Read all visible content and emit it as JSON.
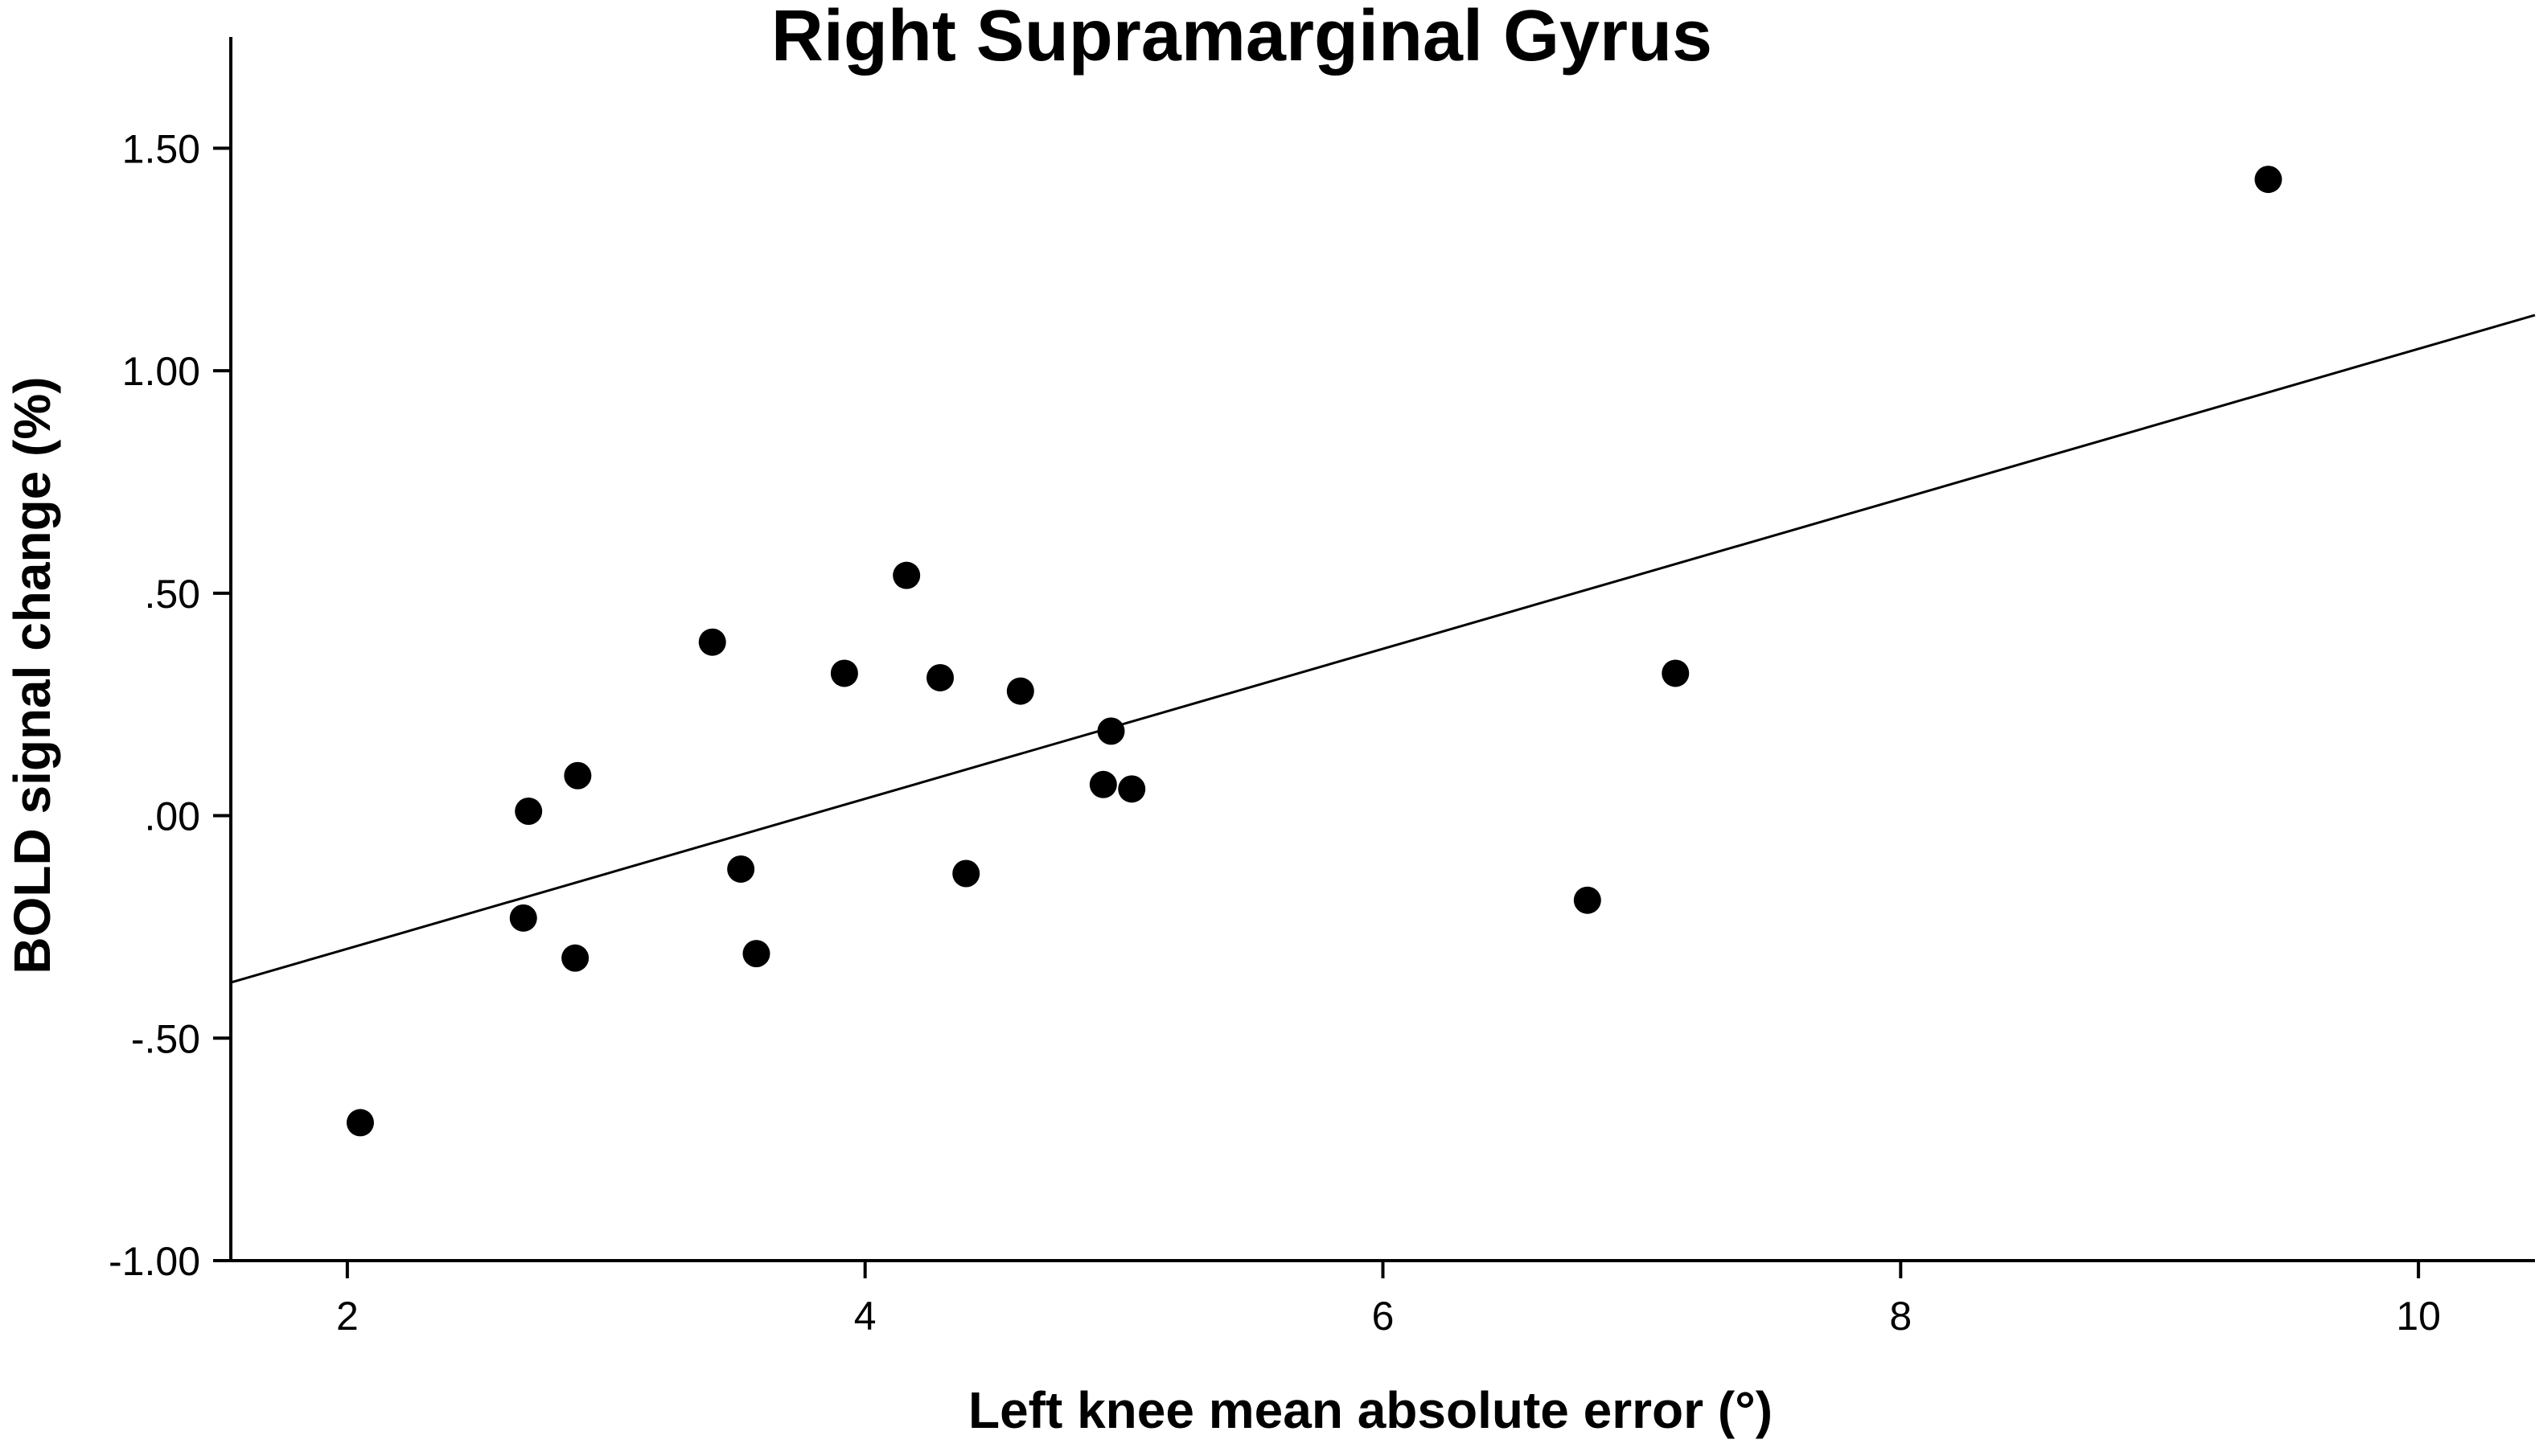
{
  "chart_data": {
    "type": "scatter",
    "title": "Right Supramarginal Gyrus",
    "xlabel": "Left knee mean absolute error (°)",
    "ylabel": "BOLD signal change (%)",
    "xlim": [
      1.55,
      10.45
    ],
    "ylim": [
      -1.0,
      1.75
    ],
    "x_ticks": [
      {
        "value": 2,
        "label": "2"
      },
      {
        "value": 4,
        "label": "4"
      },
      {
        "value": 6,
        "label": "6"
      },
      {
        "value": 8,
        "label": "8"
      },
      {
        "value": 10,
        "label": "10"
      }
    ],
    "y_ticks": [
      {
        "value": -1.0,
        "label": "-1.00"
      },
      {
        "value": -0.5,
        "label": "-.50"
      },
      {
        "value": 0.0,
        "label": ".00"
      },
      {
        "value": 0.5,
        "label": ".50"
      },
      {
        "value": 1.0,
        "label": "1.00"
      },
      {
        "value": 1.5,
        "label": "1.50"
      }
    ],
    "grid": false,
    "legend": "none",
    "points": [
      {
        "x": 2.05,
        "y": -0.69
      },
      {
        "x": 2.68,
        "y": -0.23
      },
      {
        "x": 2.7,
        "y": 0.01
      },
      {
        "x": 2.88,
        "y": -0.32
      },
      {
        "x": 2.89,
        "y": 0.09
      },
      {
        "x": 3.41,
        "y": 0.39
      },
      {
        "x": 3.52,
        "y": -0.12
      },
      {
        "x": 3.58,
        "y": -0.31
      },
      {
        "x": 3.92,
        "y": 0.32
      },
      {
        "x": 4.16,
        "y": 0.54
      },
      {
        "x": 4.29,
        "y": 0.31
      },
      {
        "x": 4.39,
        "y": -0.13
      },
      {
        "x": 4.6,
        "y": 0.28
      },
      {
        "x": 4.92,
        "y": 0.07
      },
      {
        "x": 4.95,
        "y": 0.19
      },
      {
        "x": 5.03,
        "y": 0.06
      },
      {
        "x": 6.79,
        "y": -0.19
      },
      {
        "x": 7.13,
        "y": 0.32
      },
      {
        "x": 9.42,
        "y": 1.43
      }
    ],
    "fit_line": {
      "x": [
        1.55,
        10.45
      ],
      "y": [
        -0.375,
        1.125
      ]
    },
    "colors": {
      "points": "#000000",
      "line": "#000000",
      "axes": "#000000",
      "background": "#ffffff"
    }
  }
}
